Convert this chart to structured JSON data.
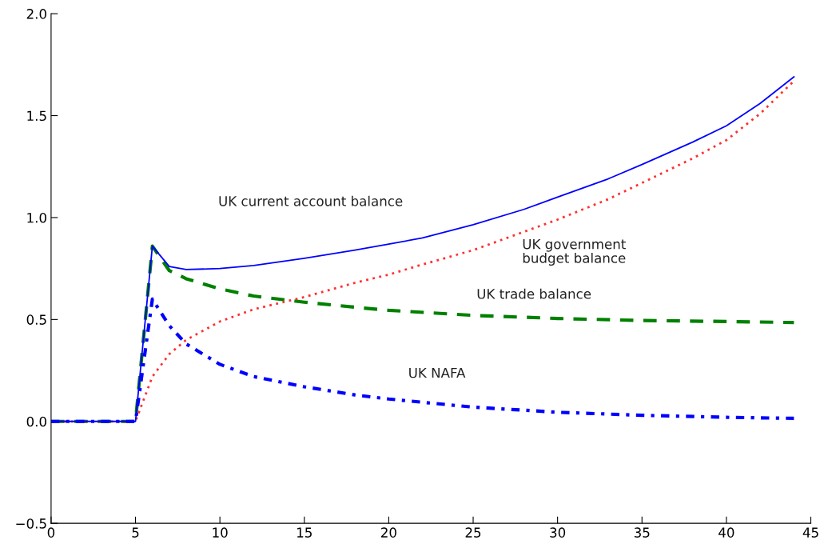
{
  "chart_data": {
    "type": "line",
    "xlim": [
      0,
      45
    ],
    "ylim": [
      -0.5,
      2.0
    ],
    "xticks": [
      0,
      5,
      10,
      15,
      20,
      25,
      30,
      35,
      40,
      45
    ],
    "yticks": [
      {
        "value": -0.5,
        "label": "−0.5"
      },
      {
        "value": 0,
        "label": "0.0"
      },
      {
        "value": 0.5,
        "label": "0.5"
      },
      {
        "value": 1.0,
        "label": "1.0"
      },
      {
        "value": 1.5,
        "label": "1.5"
      },
      {
        "value": 2.0,
        "label": "2.0"
      }
    ],
    "grid": false,
    "series": [
      {
        "name": "UK current account balance",
        "color": "#0000ff",
        "line_style": "solid",
        "x": [
          0,
          5,
          6,
          7,
          8,
          10,
          12,
          15,
          18,
          20,
          22,
          25,
          28,
          30,
          33,
          35,
          38,
          40,
          42,
          44
        ],
        "values": [
          0,
          0,
          0.86,
          0.76,
          0.745,
          0.75,
          0.765,
          0.8,
          0.84,
          0.87,
          0.9,
          0.965,
          1.04,
          1.1,
          1.19,
          1.26,
          1.37,
          1.45,
          1.56,
          1.69
        ]
      },
      {
        "name": "UK trade balance",
        "color": "#008000",
        "line_style": "dashed",
        "x": [
          0,
          5,
          6,
          7,
          8,
          10,
          12,
          15,
          18,
          20,
          25,
          30,
          35,
          40,
          44
        ],
        "values": [
          0,
          0,
          0.86,
          0.74,
          0.7,
          0.65,
          0.615,
          0.585,
          0.56,
          0.545,
          0.52,
          0.505,
          0.495,
          0.49,
          0.485
        ]
      },
      {
        "name": "UK government\nbudget balance",
        "color": "#ff3030",
        "line_style": "dotted",
        "x": [
          0,
          5,
          6,
          7,
          8,
          10,
          12,
          15,
          18,
          20,
          22,
          25,
          28,
          30,
          33,
          35,
          38,
          40,
          42,
          44
        ],
        "values": [
          0,
          0,
          0.22,
          0.33,
          0.4,
          0.49,
          0.55,
          0.61,
          0.68,
          0.72,
          0.77,
          0.84,
          0.93,
          0.99,
          1.09,
          1.17,
          1.29,
          1.38,
          1.51,
          1.67
        ]
      },
      {
        "name": "UK NAFA",
        "color": "#0000ff",
        "line_style": "dashdot",
        "x": [
          0,
          5,
          6,
          7,
          8,
          10,
          12,
          15,
          18,
          20,
          25,
          30,
          35,
          40,
          44
        ],
        "values": [
          0,
          0,
          0.6,
          0.47,
          0.38,
          0.28,
          0.22,
          0.17,
          0.13,
          0.11,
          0.07,
          0.045,
          0.03,
          0.02,
          0.015
        ]
      }
    ]
  }
}
